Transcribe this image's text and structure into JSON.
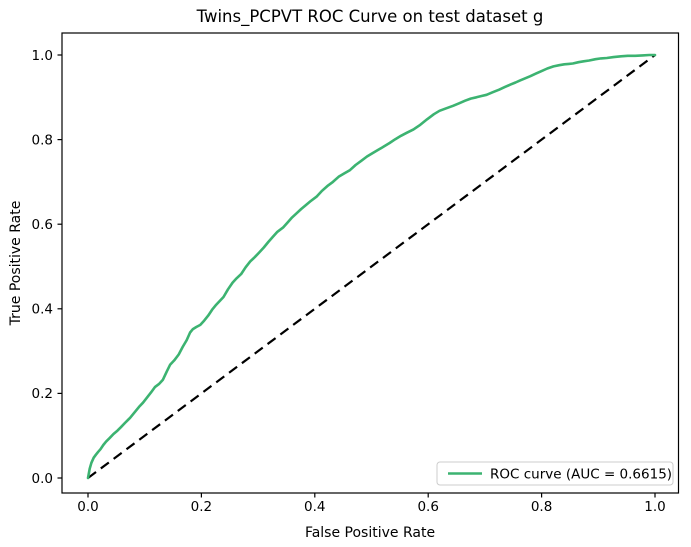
{
  "chart_data": {
    "type": "line",
    "title": "Twins_PCPVT ROC Curve on test dataset g",
    "xlabel": "False Positive Rate",
    "ylabel": "True Positive Rate",
    "xlim": [
      -0.05,
      1.05
    ],
    "ylim": [
      -0.05,
      1.05
    ],
    "grid": false,
    "x_ticks": [
      0.0,
      0.2,
      0.4,
      0.6,
      0.8,
      1.0
    ],
    "y_ticks": [
      0.0,
      0.2,
      0.4,
      0.6,
      0.8,
      1.0
    ],
    "auc": 0.6615,
    "colors": {
      "roc_curve": "#3cb371",
      "chance_line": "#000000",
      "spine": "#000000",
      "legend_border": "#cccccc",
      "legend_background": "#ffffff"
    },
    "legend": {
      "position": "lower right",
      "entries": [
        {
          "label": "ROC curve (AUC = 0.6615)",
          "color": "#3cb371",
          "style": "solid"
        }
      ]
    },
    "series": [
      {
        "name": "ROC curve (AUC = 0.6615)",
        "color": "#3cb371",
        "line_style": "solid",
        "points": [
          [
            0.0,
            0.0
          ],
          [
            0.003,
            0.022
          ],
          [
            0.006,
            0.036
          ],
          [
            0.01,
            0.048
          ],
          [
            0.014,
            0.055
          ],
          [
            0.018,
            0.062
          ],
          [
            0.022,
            0.068
          ],
          [
            0.027,
            0.078
          ],
          [
            0.032,
            0.086
          ],
          [
            0.038,
            0.094
          ],
          [
            0.045,
            0.104
          ],
          [
            0.052,
            0.112
          ],
          [
            0.058,
            0.12
          ],
          [
            0.065,
            0.13
          ],
          [
            0.074,
            0.142
          ],
          [
            0.082,
            0.155
          ],
          [
            0.09,
            0.168
          ],
          [
            0.097,
            0.178
          ],
          [
            0.104,
            0.19
          ],
          [
            0.111,
            0.202
          ],
          [
            0.118,
            0.215
          ],
          [
            0.125,
            0.222
          ],
          [
            0.132,
            0.232
          ],
          [
            0.139,
            0.252
          ],
          [
            0.145,
            0.268
          ],
          [
            0.152,
            0.278
          ],
          [
            0.16,
            0.292
          ],
          [
            0.167,
            0.31
          ],
          [
            0.174,
            0.326
          ],
          [
            0.18,
            0.344
          ],
          [
            0.185,
            0.352
          ],
          [
            0.191,
            0.357
          ],
          [
            0.198,
            0.362
          ],
          [
            0.205,
            0.372
          ],
          [
            0.212,
            0.384
          ],
          [
            0.219,
            0.398
          ],
          [
            0.225,
            0.408
          ],
          [
            0.232,
            0.418
          ],
          [
            0.239,
            0.428
          ],
          [
            0.247,
            0.446
          ],
          [
            0.255,
            0.462
          ],
          [
            0.262,
            0.472
          ],
          [
            0.27,
            0.482
          ],
          [
            0.278,
            0.498
          ],
          [
            0.286,
            0.512
          ],
          [
            0.294,
            0.522
          ],
          [
            0.302,
            0.533
          ],
          [
            0.31,
            0.545
          ],
          [
            0.318,
            0.558
          ],
          [
            0.326,
            0.57
          ],
          [
            0.334,
            0.582
          ],
          [
            0.344,
            0.592
          ],
          [
            0.352,
            0.604
          ],
          [
            0.36,
            0.616
          ],
          [
            0.368,
            0.626
          ],
          [
            0.376,
            0.636
          ],
          [
            0.384,
            0.645
          ],
          [
            0.392,
            0.654
          ],
          [
            0.403,
            0.665
          ],
          [
            0.412,
            0.678
          ],
          [
            0.422,
            0.69
          ],
          [
            0.432,
            0.7
          ],
          [
            0.442,
            0.712
          ],
          [
            0.452,
            0.72
          ],
          [
            0.462,
            0.728
          ],
          [
            0.472,
            0.74
          ],
          [
            0.482,
            0.75
          ],
          [
            0.492,
            0.76
          ],
          [
            0.502,
            0.768
          ],
          [
            0.512,
            0.776
          ],
          [
            0.521,
            0.783
          ],
          [
            0.532,
            0.792
          ],
          [
            0.542,
            0.801
          ],
          [
            0.552,
            0.809
          ],
          [
            0.562,
            0.816
          ],
          [
            0.574,
            0.824
          ],
          [
            0.586,
            0.835
          ],
          [
            0.598,
            0.848
          ],
          [
            0.61,
            0.86
          ],
          [
            0.62,
            0.868
          ],
          [
            0.63,
            0.873
          ],
          [
            0.644,
            0.88
          ],
          [
            0.655,
            0.886
          ],
          [
            0.665,
            0.892
          ],
          [
            0.675,
            0.897
          ],
          [
            0.685,
            0.9
          ],
          [
            0.694,
            0.903
          ],
          [
            0.703,
            0.906
          ],
          [
            0.714,
            0.912
          ],
          [
            0.725,
            0.918
          ],
          [
            0.735,
            0.924
          ],
          [
            0.745,
            0.93
          ],
          [
            0.754,
            0.935
          ],
          [
            0.762,
            0.94
          ],
          [
            0.771,
            0.945
          ],
          [
            0.78,
            0.95
          ],
          [
            0.79,
            0.956
          ],
          [
            0.8,
            0.962
          ],
          [
            0.81,
            0.968
          ],
          [
            0.821,
            0.973
          ],
          [
            0.831,
            0.976
          ],
          [
            0.84,
            0.978
          ],
          [
            0.848,
            0.979
          ],
          [
            0.855,
            0.98
          ],
          [
            0.865,
            0.983
          ],
          [
            0.874,
            0.985
          ],
          [
            0.884,
            0.987
          ],
          [
            0.895,
            0.99
          ],
          [
            0.905,
            0.992
          ],
          [
            0.915,
            0.993
          ],
          [
            0.927,
            0.995
          ],
          [
            0.94,
            0.997
          ],
          [
            0.952,
            0.998
          ],
          [
            0.965,
            0.998
          ],
          [
            0.978,
            0.999
          ],
          [
            0.99,
            1.0
          ],
          [
            1.0,
            1.0
          ]
        ]
      },
      {
        "name": "chance diagonal",
        "color": "#000000",
        "line_style": "dashed",
        "points": [
          [
            0.0,
            0.0
          ],
          [
            1.0,
            1.0
          ]
        ]
      }
    ]
  }
}
